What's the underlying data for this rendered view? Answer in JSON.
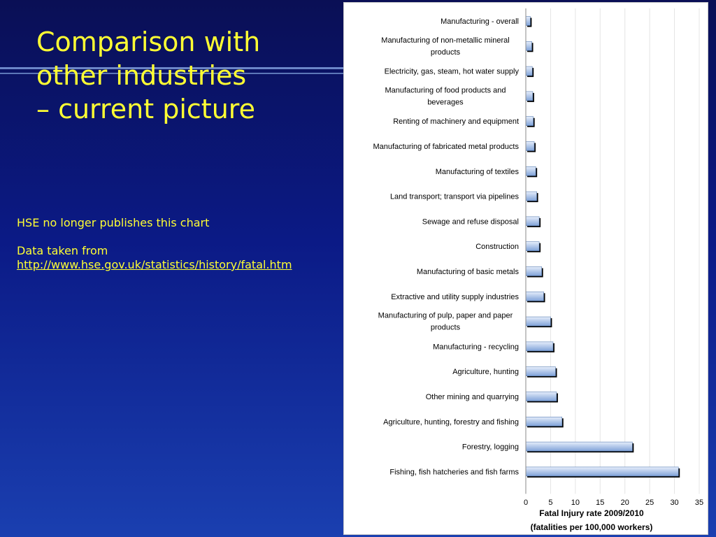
{
  "slide": {
    "title_lines": [
      "Comparison with",
      "other industries",
      "– current picture"
    ],
    "note_line1": "HSE no longer publishes this chart",
    "note_line2": "Data taken from",
    "note_link": "http://www.hse.gov.uk/statistics/history/fatal.htm"
  },
  "colors": {
    "title_text": "#ffff33",
    "background_top": "#0a0f55",
    "background_bottom": "#1a3fb0",
    "bar_fill_light": "#e6eefb",
    "bar_fill_dark": "#7fa2d8",
    "bar_edge": "#000000"
  },
  "chart_data": {
    "type": "bar",
    "orientation": "horizontal",
    "categories": [
      "Manufacturing - overall",
      "Manufacturing of non-metallic mineral products",
      "Electricity, gas, steam, hot water supply",
      "Manufacturing of  food products and beverages",
      "Renting of machinery and equipment",
      "Manufacturing of  fabricated metal products",
      "Manufacturing of  textiles",
      "Land transport; transport via pipelines",
      "Sewage and refuse disposal",
      "Construction",
      "Manufacturing of  basic metals",
      "Extractive and utility supply industries",
      "Manufacturing of  pulp, paper and paper products",
      "Manufacturing - recycling",
      "Agriculture, hunting",
      "Other mining and quarrying",
      "Agriculture, hunting, forestry and fishing",
      "Forestry, logging",
      "Fishing, fish hatcheries and fish farms"
    ],
    "values": [
      0.9,
      1.2,
      1.3,
      1.4,
      1.5,
      1.7,
      2.0,
      2.2,
      2.7,
      2.7,
      3.2,
      3.6,
      5.0,
      5.5,
      6.0,
      6.2,
      7.3,
      21.5,
      30.8
    ],
    "xticks": [
      "0",
      "5",
      "10",
      "15",
      "20",
      "25",
      "30",
      "35"
    ],
    "xlim": [
      0,
      35
    ],
    "xlabel_line1": "Fatal Injury rate 2009/2010",
    "xlabel_line2": "(fatalities per 100,000 workers)",
    "grid": true,
    "legend": "none"
  }
}
